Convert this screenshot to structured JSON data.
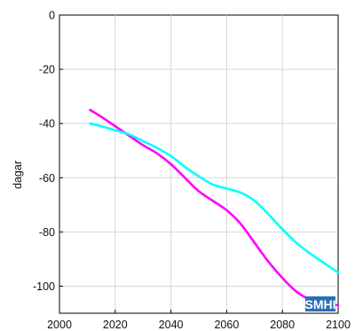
{
  "chart_data": {
    "type": "line",
    "title": "",
    "xlabel": "",
    "ylabel": "dagar",
    "xlim": [
      2000,
      2100
    ],
    "ylim": [
      -110,
      0
    ],
    "x_ticks": [
      2000,
      2020,
      2040,
      2060,
      2080,
      2100
    ],
    "y_ticks": [
      0,
      -20,
      -40,
      -60,
      -80,
      -100
    ],
    "grid": true,
    "series": [
      {
        "color": "#ff00ff",
        "x": [
          2011,
          2015,
          2020,
          2025,
          2030,
          2035,
          2040,
          2045,
          2050,
          2055,
          2060,
          2065,
          2070,
          2075,
          2080,
          2085,
          2090,
          2095,
          2100
        ],
        "y": [
          -35,
          -37.5,
          -41,
          -44.5,
          -48,
          -51,
          -55,
          -60,
          -65,
          -68.5,
          -72,
          -77,
          -84,
          -91,
          -97,
          -102,
          -105,
          -106.5,
          -107
        ]
      },
      {
        "color": "#00ffff",
        "x": [
          2011,
          2015,
          2020,
          2025,
          2030,
          2035,
          2040,
          2045,
          2050,
          2055,
          2060,
          2065,
          2070,
          2075,
          2080,
          2085,
          2090,
          2095,
          2100
        ],
        "y": [
          -40,
          -41,
          -42.5,
          -44,
          -46.5,
          -49,
          -52,
          -56,
          -59.5,
          -62.5,
          -64,
          -65.5,
          -68.5,
          -73.5,
          -79,
          -84,
          -88,
          -91.5,
          -95
        ]
      }
    ]
  },
  "logo": {
    "text": "SMHI",
    "bg_color": "#2a6fb6"
  }
}
